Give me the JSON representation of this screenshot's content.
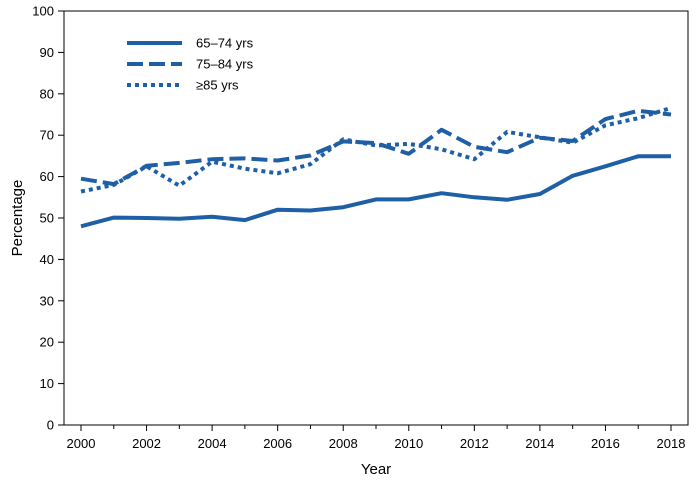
{
  "chart_data": {
    "type": "line",
    "title": "",
    "xlabel": "Year",
    "ylabel": "Percentage",
    "xlim": [
      2000,
      2018
    ],
    "ylim": [
      0,
      100
    ],
    "x_ticks": [
      2000,
      2002,
      2004,
      2006,
      2008,
      2010,
      2012,
      2014,
      2016,
      2018
    ],
    "y_ticks": [
      0,
      10,
      20,
      30,
      40,
      50,
      60,
      70,
      80,
      90,
      100
    ],
    "x": [
      2000,
      2001,
      2002,
      2003,
      2004,
      2005,
      2006,
      2007,
      2008,
      2009,
      2010,
      2011,
      2012,
      2013,
      2014,
      2015,
      2016,
      2017,
      2018
    ],
    "legend_position": "top-left",
    "grid": false,
    "series": [
      {
        "name": "65–74 yrs",
        "style": "solid",
        "color": "#1f5fa6",
        "values": [
          48.0,
          50.1,
          50.0,
          49.8,
          50.3,
          49.5,
          52.0,
          51.8,
          52.6,
          54.5,
          54.5,
          56.0,
          55.0,
          54.4,
          55.8,
          60.2,
          62.5,
          64.9,
          64.9
        ]
      },
      {
        "name": "75–84 yrs",
        "style": "dashed",
        "color": "#1f5fa6",
        "values": [
          59.5,
          58.2,
          62.6,
          63.3,
          64.2,
          64.4,
          63.9,
          65.1,
          68.5,
          68.1,
          65.5,
          71.3,
          67.2,
          65.9,
          69.4,
          68.6,
          73.9,
          75.9,
          75.0
        ]
      },
      {
        "name": "≥85 yrs",
        "style": "dotted",
        "color": "#1f5fa6",
        "values": [
          56.4,
          58.0,
          62.5,
          57.8,
          63.6,
          61.9,
          60.8,
          63.0,
          69.0,
          67.5,
          67.9,
          66.6,
          64.2,
          70.8,
          69.5,
          68.2,
          72.4,
          74.1,
          76.6
        ]
      }
    ]
  }
}
